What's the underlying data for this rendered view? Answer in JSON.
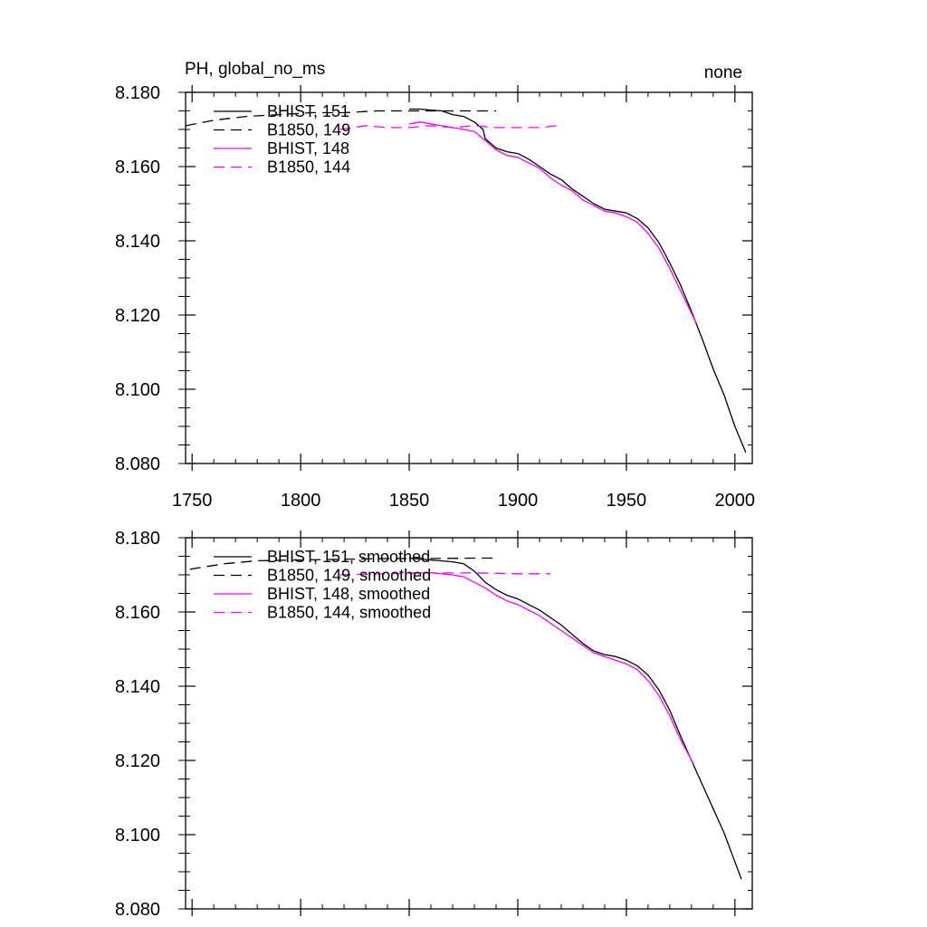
{
  "chart_data": [
    {
      "type": "line",
      "title": "PH, global_no_ms",
      "title_right": "none",
      "xlim": [
        1747,
        2008
      ],
      "ylim": [
        8.08,
        8.18
      ],
      "yticks": [
        "8.180",
        "8.160",
        "8.140",
        "8.120",
        "8.100",
        "8.080"
      ],
      "xticks": [
        "1750",
        "1800",
        "1850",
        "1900",
        "1950",
        "2000"
      ],
      "show_x_tick_labels": true,
      "legend_position": "top-left",
      "series": [
        {
          "name": "BHIST, 151",
          "color": "#000000",
          "dash": "solid",
          "x": [
            1850,
            1855,
            1860,
            1865,
            1870,
            1875,
            1880,
            1884,
            1885,
            1890,
            1895,
            1900,
            1905,
            1910,
            1915,
            1920,
            1925,
            1930,
            1935,
            1940,
            1945,
            1950,
            1955,
            1960,
            1965,
            1970,
            1975,
            1980,
            1985,
            1990,
            1995,
            2000,
            2005
          ],
          "y": [
            8.1755,
            8.1755,
            8.1752,
            8.175,
            8.174,
            8.1735,
            8.172,
            8.17,
            8.1675,
            8.165,
            8.164,
            8.1635,
            8.162,
            8.16,
            8.158,
            8.1565,
            8.154,
            8.152,
            8.15,
            8.1485,
            8.148,
            8.1475,
            8.146,
            8.1435,
            8.1395,
            8.134,
            8.128,
            8.121,
            8.1135,
            8.1055,
            8.0985,
            8.09,
            8.083
          ]
        },
        {
          "name": "B1850, 149",
          "color": "#000000",
          "dash": "dashed",
          "x": [
            1747,
            1760,
            1775,
            1790,
            1805,
            1820,
            1835,
            1850,
            1865,
            1880,
            1890
          ],
          "y": [
            8.171,
            8.1725,
            8.1735,
            8.174,
            8.1745,
            8.1745,
            8.175,
            8.175,
            8.175,
            8.175,
            8.175
          ]
        },
        {
          "name": "BHIST, 148",
          "color": "#ff00ff",
          "dash": "solid",
          "x": [
            1850,
            1855,
            1860,
            1865,
            1870,
            1875,
            1880,
            1885,
            1890,
            1895,
            1900,
            1905,
            1910,
            1915,
            1920,
            1925,
            1930,
            1935,
            1940,
            1945,
            1950,
            1955,
            1960,
            1965,
            1970,
            1975,
            1980,
            1982
          ],
          "y": [
            8.1715,
            8.172,
            8.1715,
            8.171,
            8.1705,
            8.17,
            8.1695,
            8.167,
            8.1645,
            8.163,
            8.1625,
            8.161,
            8.1595,
            8.157,
            8.155,
            8.1535,
            8.151,
            8.1495,
            8.148,
            8.1475,
            8.1465,
            8.145,
            8.142,
            8.138,
            8.1325,
            8.1265,
            8.1205,
            8.118
          ]
        },
        {
          "name": "B1850, 144",
          "color": "#ff00ff",
          "dash": "dashed",
          "x": [
            1818,
            1830,
            1840,
            1850,
            1860,
            1870,
            1880,
            1890,
            1900,
            1910,
            1918
          ],
          "y": [
            8.17,
            8.171,
            8.1705,
            8.1705,
            8.171,
            8.1705,
            8.171,
            8.1705,
            8.1705,
            8.1705,
            8.171
          ]
        }
      ]
    },
    {
      "type": "line",
      "title": "",
      "xlim": [
        1747,
        2008
      ],
      "ylim": [
        8.08,
        8.18
      ],
      "yticks": [
        "8.180",
        "8.160",
        "8.140",
        "8.120",
        "8.100",
        "8.080"
      ],
      "show_x_tick_labels": false,
      "legend_position": "top-left",
      "series": [
        {
          "name": "BHIST, 151, smoothed",
          "color": "#000000",
          "dash": "solid",
          "x": [
            1850,
            1860,
            1870,
            1875,
            1880,
            1885,
            1890,
            1895,
            1900,
            1905,
            1910,
            1915,
            1920,
            1925,
            1930,
            1935,
            1940,
            1945,
            1950,
            1955,
            1960,
            1965,
            1970,
            1975,
            1980,
            1985,
            1990,
            1995,
            2003
          ],
          "y": [
            8.1745,
            8.174,
            8.1735,
            8.173,
            8.171,
            8.168,
            8.166,
            8.1645,
            8.1635,
            8.162,
            8.1605,
            8.1585,
            8.1565,
            8.154,
            8.1515,
            8.1495,
            8.1485,
            8.148,
            8.147,
            8.1455,
            8.143,
            8.139,
            8.1335,
            8.1265,
            8.12,
            8.1135,
            8.107,
            8.1005,
            8.088
          ]
        },
        {
          "name": "B1850, 149, smoothed",
          "color": "#000000",
          "dash": "dashed",
          "x": [
            1749,
            1765,
            1780,
            1800,
            1820,
            1840,
            1860,
            1880,
            1890
          ],
          "y": [
            8.1715,
            8.173,
            8.1738,
            8.174,
            8.1742,
            8.1744,
            8.1744,
            8.1745,
            8.1745
          ]
        },
        {
          "name": "BHIST, 148, smoothed",
          "color": "#ff00ff",
          "dash": "solid",
          "x": [
            1850,
            1860,
            1870,
            1875,
            1880,
            1885,
            1890,
            1895,
            1900,
            1905,
            1910,
            1915,
            1920,
            1925,
            1930,
            1935,
            1940,
            1945,
            1950,
            1955,
            1960,
            1965,
            1970,
            1975,
            1981
          ],
          "y": [
            8.1705,
            8.1705,
            8.17,
            8.1695,
            8.168,
            8.1665,
            8.1645,
            8.163,
            8.162,
            8.1605,
            8.159,
            8.157,
            8.155,
            8.153,
            8.151,
            8.149,
            8.148,
            8.147,
            8.146,
            8.1445,
            8.1415,
            8.1375,
            8.132,
            8.1255,
            8.119
          ]
        },
        {
          "name": "B1850, 144, smoothed",
          "color": "#ff00ff",
          "dash": "dashed",
          "x": [
            1818,
            1840,
            1860,
            1880,
            1900,
            1915
          ],
          "y": [
            8.17,
            8.1703,
            8.1705,
            8.1705,
            8.1703,
            8.1703
          ]
        }
      ]
    }
  ]
}
